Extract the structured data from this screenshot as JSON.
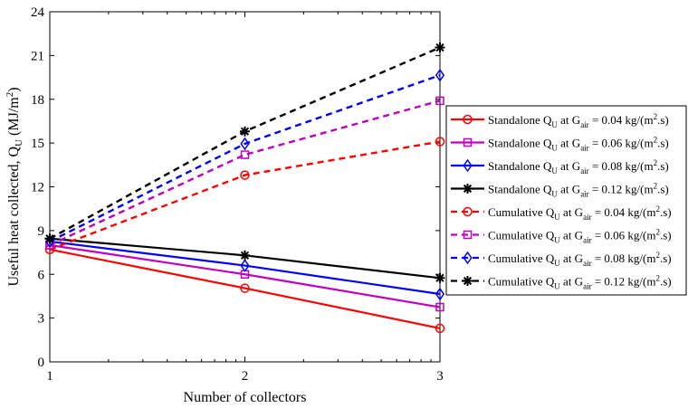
{
  "chart_data": {
    "type": "line",
    "title": "",
    "xlabel": "Number of collectors",
    "ylabel": {
      "main": "Useful heat collected, Q",
      "sub": "U",
      "unit_open": " (MJ/m",
      "unit_sup": "2",
      "unit_close": ")"
    },
    "x": [
      1,
      2,
      3
    ],
    "xlim": [
      1,
      3
    ],
    "ylim": [
      0,
      24
    ],
    "xticks": [
      "1",
      "2",
      "3"
    ],
    "yticks": [
      "0",
      "3",
      "6",
      "9",
      "12",
      "15",
      "18",
      "21",
      "24"
    ],
    "grid": false,
    "legend_position": "right",
    "series": [
      {
        "prefix": "Standalone Q",
        "sub1": "U",
        "mid": " at G",
        "sub2": "air",
        "eq": " = 0.04 kg/(m",
        "sup": "2",
        "end": ".s)",
        "values": [
          7.7,
          5.05,
          2.3
        ],
        "color": "#ff0000",
        "dash": "solid",
        "marker": "circle"
      },
      {
        "prefix": "Standalone Q",
        "sub1": "U",
        "mid": " at G",
        "sub2": "air",
        "eq": " = 0.06 kg/(m",
        "sup": "2",
        "end": ".s)",
        "values": [
          8.0,
          6.0,
          3.75
        ],
        "color": "#c000c0",
        "dash": "solid",
        "marker": "square"
      },
      {
        "prefix": "Standalone Q",
        "sub1": "U",
        "mid": " at G",
        "sub2": "air",
        "eq": " = 0.08 kg/(m",
        "sup": "2",
        "end": ".s)",
        "values": [
          8.25,
          6.6,
          4.65
        ],
        "color": "#0000ff",
        "dash": "solid",
        "marker": "diamond"
      },
      {
        "prefix": "Standalone Q",
        "sub1": "U",
        "mid": " at G",
        "sub2": "air",
        "eq": " = 0.12 kg/(m",
        "sup": "2",
        "end": ".s)",
        "values": [
          8.45,
          7.3,
          5.75
        ],
        "color": "#000000",
        "dash": "solid",
        "marker": "asterisk"
      },
      {
        "prefix": "Cumulative Q",
        "sub1": "U",
        "mid": " at G",
        "sub2": "air",
        "eq": " = 0.04 kg/(m",
        "sup": "2",
        "end": ".s)",
        "values": [
          7.7,
          12.8,
          15.1
        ],
        "color": "#ff0000",
        "dash": "dashed",
        "marker": "circle"
      },
      {
        "prefix": "Cumulative Q",
        "sub1": "U",
        "mid": " at G",
        "sub2": "air",
        "eq": " = 0.06 kg/(m",
        "sup": "2",
        "end": ".s)",
        "values": [
          8.0,
          14.2,
          17.9
        ],
        "color": "#c000c0",
        "dash": "dashed",
        "marker": "square"
      },
      {
        "prefix": "Cumulative Q",
        "sub1": "U",
        "mid": " at G",
        "sub2": "air",
        "eq": " = 0.08 kg/(m",
        "sup": "2",
        "end": ".s)",
        "values": [
          8.25,
          14.95,
          19.65
        ],
        "color": "#0000ff",
        "dash": "dashed",
        "marker": "diamond"
      },
      {
        "prefix": "Cumulative Q",
        "sub1": "U",
        "mid": " at G",
        "sub2": "air",
        "eq": " = 0.12 kg/(m",
        "sup": "2",
        "end": ".s)",
        "values": [
          8.45,
          15.8,
          21.55
        ],
        "color": "#000000",
        "dash": "dashed",
        "marker": "asterisk"
      }
    ]
  }
}
